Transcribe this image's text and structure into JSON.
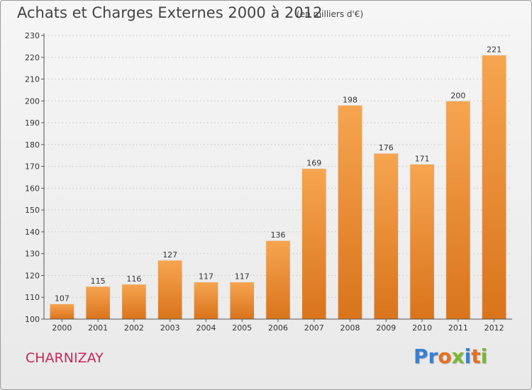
{
  "page": {
    "title": "Achats et Charges Externes 2000 à 2012",
    "subtitle": "(en milliers d'€)",
    "commune": "CHARNIZAY",
    "logo": "Proxiti"
  },
  "colors": {
    "bar_top": "#f7a550",
    "bar_bottom": "#d9741b",
    "commune": "#c8285a",
    "logo_letters": [
      "#3a7fd0",
      "#3a7fd0",
      "#e8701e",
      "#7ab830",
      "#3a7fd0",
      "#e8701e",
      "#7ab830"
    ]
  },
  "chart_data": {
    "type": "bar",
    "title": "Achats et Charges Externes 2000 à 2012",
    "subtitle": "(en milliers d'€)",
    "categories": [
      "2000",
      "2001",
      "2002",
      "2003",
      "2004",
      "2005",
      "2006",
      "2007",
      "2008",
      "2009",
      "2010",
      "2011",
      "2012"
    ],
    "values": [
      107,
      115,
      116,
      127,
      117,
      117,
      136,
      169,
      198,
      176,
      171,
      200,
      221
    ],
    "ylim": [
      100,
      230
    ],
    "yticks": [
      100,
      110,
      120,
      130,
      140,
      150,
      160,
      170,
      180,
      190,
      200,
      210,
      220,
      230
    ],
    "grid": true,
    "xlabel": "",
    "ylabel": ""
  }
}
